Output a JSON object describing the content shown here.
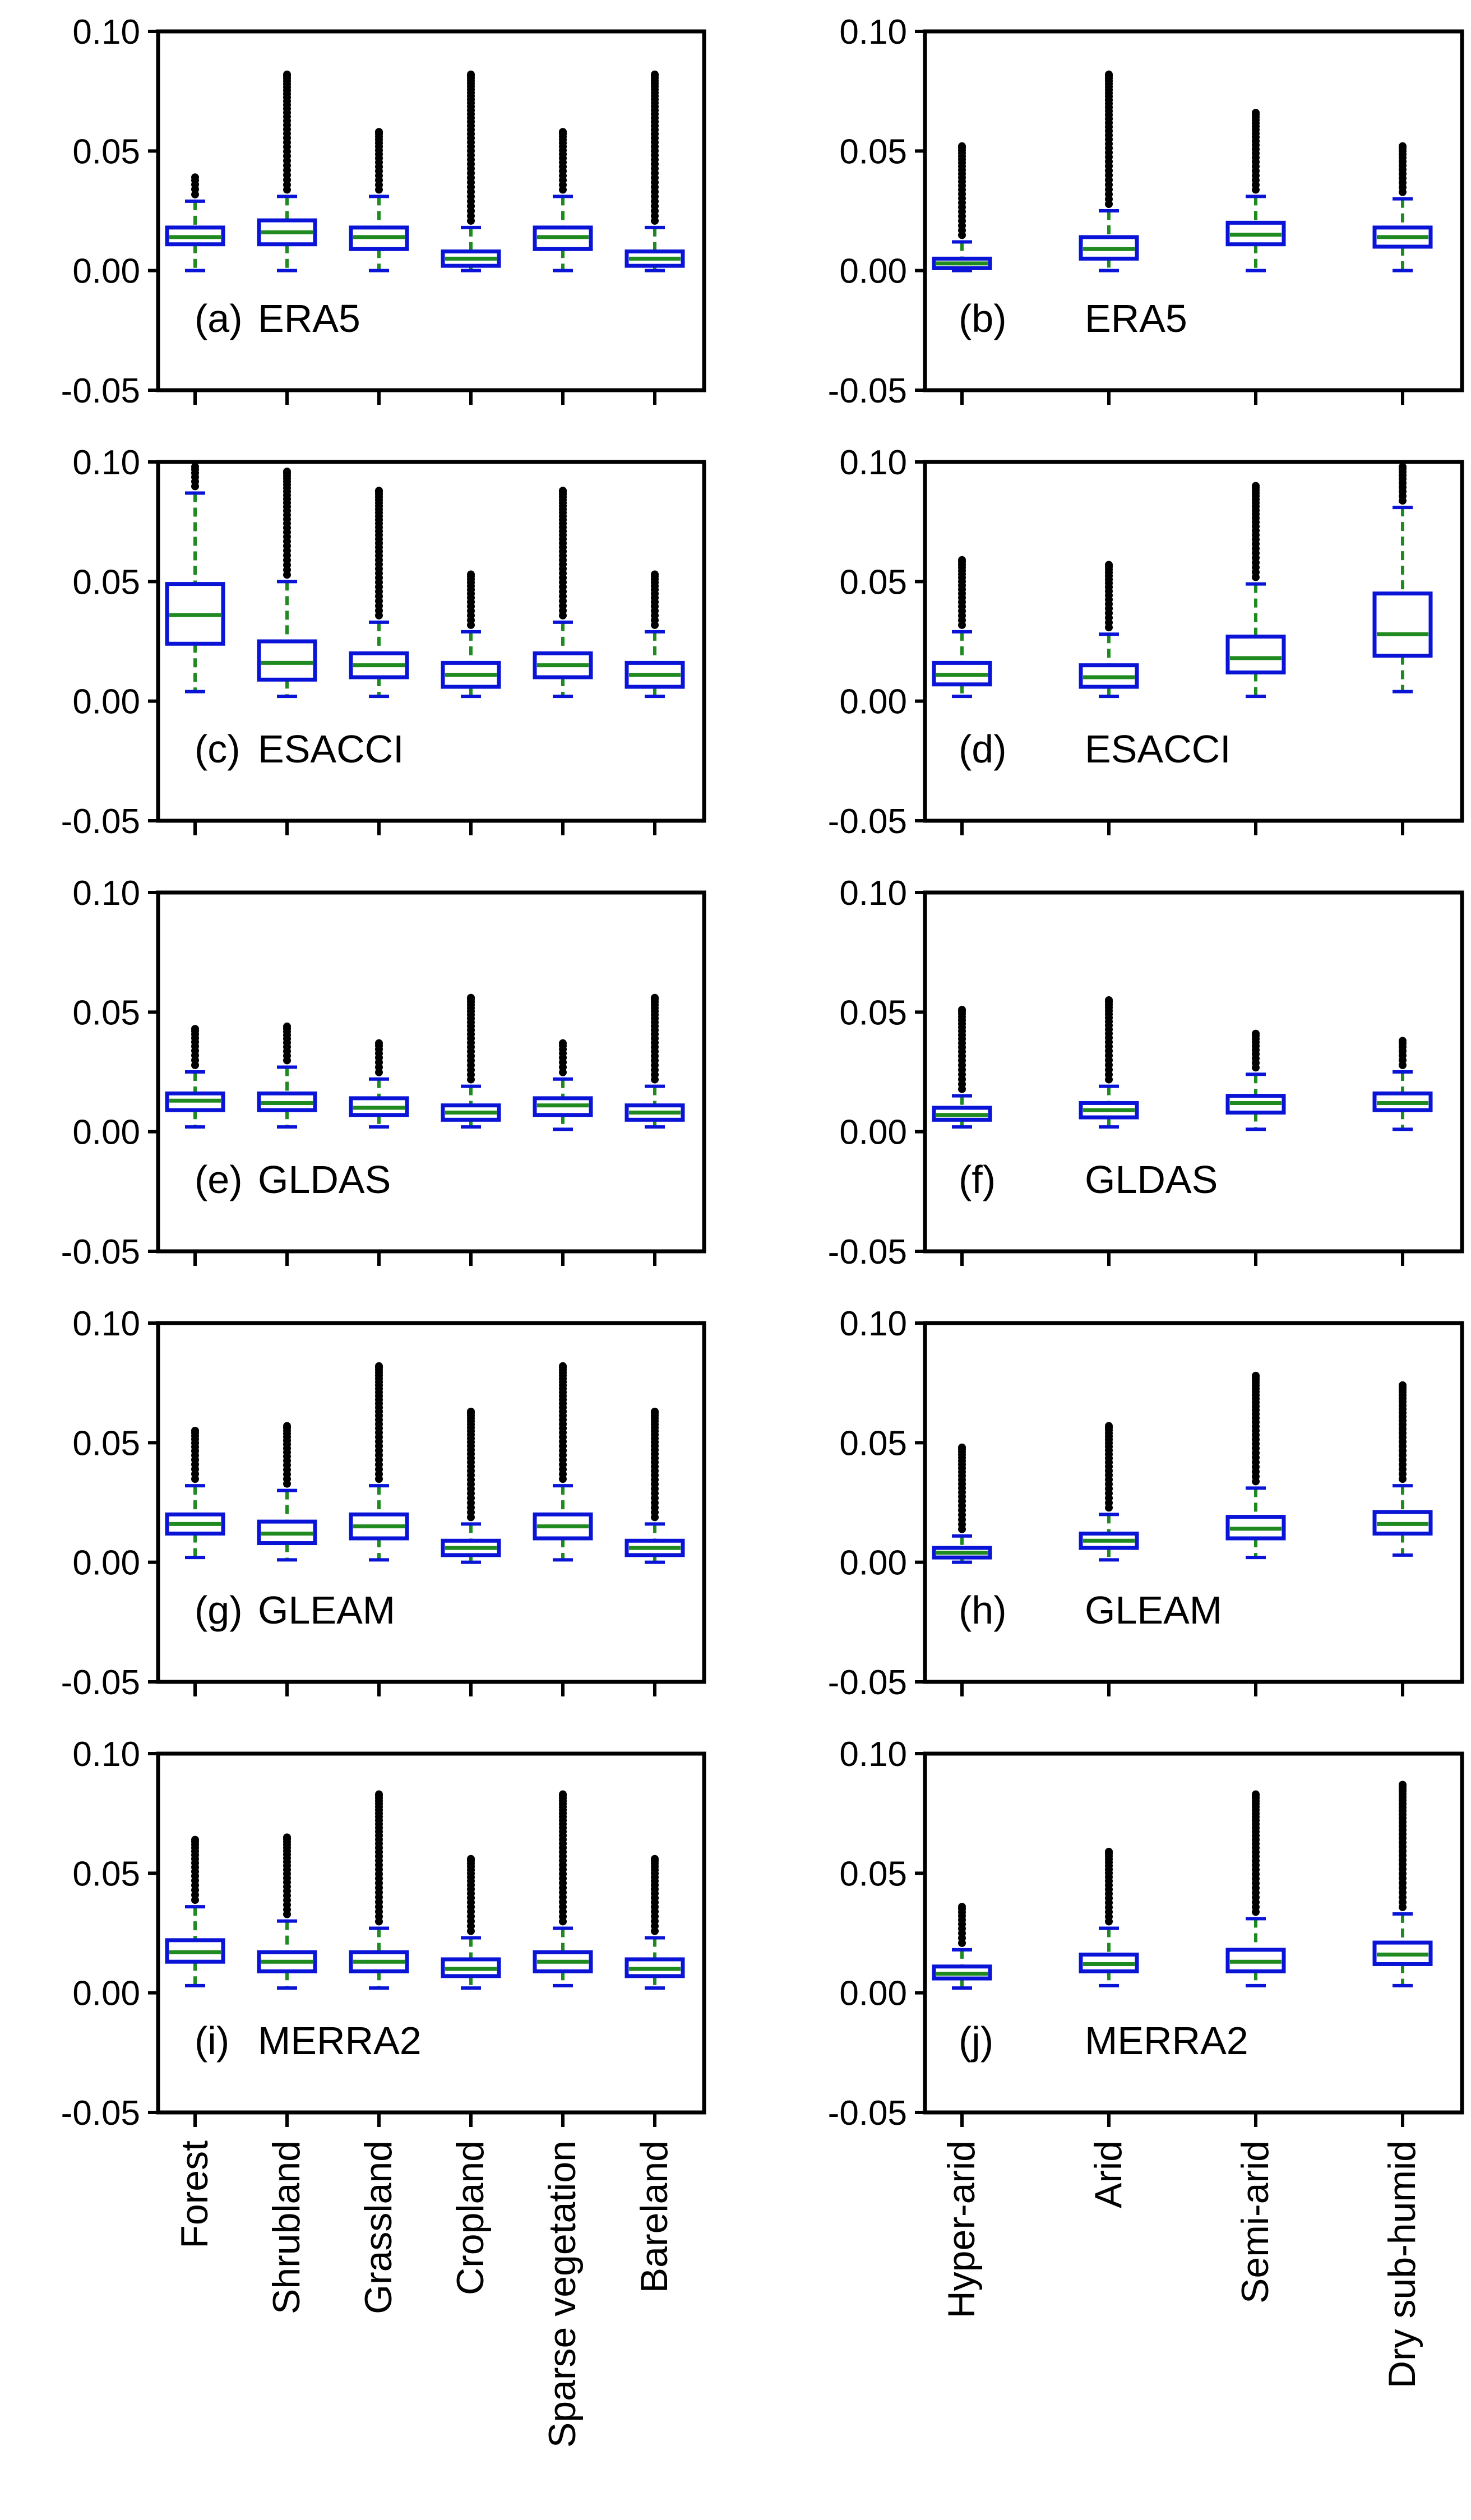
{
  "chart_data": {
    "type": "box",
    "yticks": [
      "0.10",
      "0.05",
      "0.00",
      "-0.05"
    ],
    "ylim": [
      -0.05,
      0.1
    ],
    "colors": {
      "box": "#0a14d6",
      "median": "#1f8a1f",
      "whisker": "#1f8a1f",
      "outlier": "#000000",
      "axis": "#000000"
    },
    "left_categories": [
      "Forest",
      "Shrubland",
      "Grassland",
      "Cropland",
      "Sparse vegetation",
      "Bareland"
    ],
    "right_categories": [
      "Hyper-arid",
      "Arid",
      "Semi-arid",
      "Dry sub-humid"
    ],
    "rows": [
      {
        "dataset": "ERA5",
        "left": {
          "label": "(a)",
          "name": "ERA5",
          "boxes": [
            {
              "category": "Forest",
              "min": 0.0,
              "q1": 0.011,
              "median": 0.014,
              "q3": 0.018,
              "whisker_top": 0.029,
              "outlier_top": 0.039
            },
            {
              "category": "Shrubland",
              "min": 0.0,
              "q1": 0.011,
              "median": 0.016,
              "q3": 0.021,
              "whisker_top": 0.031,
              "outlier_top": 0.082
            },
            {
              "category": "Grassland",
              "min": 0.0,
              "q1": 0.009,
              "median": 0.014,
              "q3": 0.018,
              "whisker_top": 0.031,
              "outlier_top": 0.058
            },
            {
              "category": "Cropland",
              "min": 0.0,
              "q1": 0.002,
              "median": 0.005,
              "q3": 0.008,
              "whisker_top": 0.018,
              "outlier_top": 0.082
            },
            {
              "category": "Sparse vegetation",
              "min": 0.0,
              "q1": 0.009,
              "median": 0.014,
              "q3": 0.018,
              "whisker_top": 0.031,
              "outlier_top": 0.058
            },
            {
              "category": "Bareland",
              "min": 0.0,
              "q1": 0.002,
              "median": 0.005,
              "q3": 0.008,
              "whisker_top": 0.018,
              "outlier_top": 0.082
            }
          ]
        },
        "right": {
          "label": "(b)",
          "name": "ERA5",
          "boxes": [
            {
              "category": "Hyper-arid",
              "min": 0.0,
              "q1": 0.001,
              "median": 0.003,
              "q3": 0.005,
              "whisker_top": 0.012,
              "outlier_top": 0.052
            },
            {
              "category": "Arid",
              "min": 0.0,
              "q1": 0.005,
              "median": 0.009,
              "q3": 0.014,
              "whisker_top": 0.025,
              "outlier_top": 0.082
            },
            {
              "category": "Semi-arid",
              "min": 0.0,
              "q1": 0.011,
              "median": 0.015,
              "q3": 0.02,
              "whisker_top": 0.031,
              "outlier_top": 0.066
            },
            {
              "category": "Dry sub-humid",
              "min": 0.0,
              "q1": 0.01,
              "median": 0.014,
              "q3": 0.018,
              "whisker_top": 0.03,
              "outlier_top": 0.052
            }
          ]
        }
      },
      {
        "dataset": "ESACCI",
        "left": {
          "label": "(c)",
          "name": "ESACCI",
          "boxes": [
            {
              "category": "Forest",
              "min": 0.004,
              "q1": 0.024,
              "median": 0.036,
              "q3": 0.049,
              "whisker_top": 0.087,
              "outlier_top": 0.098
            },
            {
              "category": "Shrubland",
              "min": 0.002,
              "q1": 0.009,
              "median": 0.016,
              "q3": 0.025,
              "whisker_top": 0.05,
              "outlier_top": 0.096
            },
            {
              "category": "Grassland",
              "min": 0.002,
              "q1": 0.01,
              "median": 0.015,
              "q3": 0.02,
              "whisker_top": 0.033,
              "outlier_top": 0.088
            },
            {
              "category": "Cropland",
              "min": 0.002,
              "q1": 0.006,
              "median": 0.011,
              "q3": 0.016,
              "whisker_top": 0.029,
              "outlier_top": 0.053
            },
            {
              "category": "Sparse vegetation",
              "min": 0.002,
              "q1": 0.01,
              "median": 0.015,
              "q3": 0.02,
              "whisker_top": 0.033,
              "outlier_top": 0.088
            },
            {
              "category": "Bareland",
              "min": 0.002,
              "q1": 0.006,
              "median": 0.011,
              "q3": 0.016,
              "whisker_top": 0.029,
              "outlier_top": 0.053
            }
          ]
        },
        "right": {
          "label": "(d)",
          "name": "ESACCI",
          "boxes": [
            {
              "category": "Hyper-arid",
              "min": 0.002,
              "q1": 0.007,
              "median": 0.011,
              "q3": 0.016,
              "whisker_top": 0.029,
              "outlier_top": 0.059
            },
            {
              "category": "Arid",
              "min": 0.002,
              "q1": 0.006,
              "median": 0.01,
              "q3": 0.015,
              "whisker_top": 0.028,
              "outlier_top": 0.057
            },
            {
              "category": "Semi-arid",
              "min": 0.002,
              "q1": 0.012,
              "median": 0.018,
              "q3": 0.027,
              "whisker_top": 0.049,
              "outlier_top": 0.09
            },
            {
              "category": "Dry sub-humid",
              "min": 0.004,
              "q1": 0.019,
              "median": 0.028,
              "q3": 0.045,
              "whisker_top": 0.081,
              "outlier_top": 0.098
            }
          ]
        }
      },
      {
        "dataset": "GLDAS",
        "left": {
          "label": "(e)",
          "name": "GLDAS",
          "boxes": [
            {
              "category": "Forest",
              "min": 0.002,
              "q1": 0.009,
              "median": 0.013,
              "q3": 0.016,
              "whisker_top": 0.025,
              "outlier_top": 0.043
            },
            {
              "category": "Shrubland",
              "min": 0.002,
              "q1": 0.009,
              "median": 0.012,
              "q3": 0.016,
              "whisker_top": 0.027,
              "outlier_top": 0.044
            },
            {
              "category": "Grassland",
              "min": 0.002,
              "q1": 0.007,
              "median": 0.01,
              "q3": 0.014,
              "whisker_top": 0.022,
              "outlier_top": 0.037
            },
            {
              "category": "Cropland",
              "min": 0.002,
              "q1": 0.005,
              "median": 0.008,
              "q3": 0.011,
              "whisker_top": 0.019,
              "outlier_top": 0.056
            },
            {
              "category": "Sparse vegetation",
              "min": 0.001,
              "q1": 0.007,
              "median": 0.011,
              "q3": 0.014,
              "whisker_top": 0.022,
              "outlier_top": 0.037
            },
            {
              "category": "Bareland",
              "min": 0.002,
              "q1": 0.005,
              "median": 0.008,
              "q3": 0.011,
              "whisker_top": 0.019,
              "outlier_top": 0.056
            }
          ]
        },
        "right": {
          "label": "(f)",
          "name": "GLDAS",
          "boxes": [
            {
              "category": "Hyper-arid",
              "min": 0.002,
              "q1": 0.005,
              "median": 0.007,
              "q3": 0.01,
              "whisker_top": 0.015,
              "outlier_top": 0.051
            },
            {
              "category": "Arid",
              "min": 0.002,
              "q1": 0.006,
              "median": 0.009,
              "q3": 0.012,
              "whisker_top": 0.019,
              "outlier_top": 0.055
            },
            {
              "category": "Semi-arid",
              "min": 0.001,
              "q1": 0.008,
              "median": 0.012,
              "q3": 0.015,
              "whisker_top": 0.024,
              "outlier_top": 0.041
            },
            {
              "category": "Dry sub-humid",
              "min": 0.001,
              "q1": 0.009,
              "median": 0.012,
              "q3": 0.016,
              "whisker_top": 0.025,
              "outlier_top": 0.038
            }
          ]
        }
      },
      {
        "dataset": "GLEAM",
        "left": {
          "label": "(g)",
          "name": "GLEAM",
          "boxes": [
            {
              "category": "Forest",
              "min": 0.002,
              "q1": 0.012,
              "median": 0.016,
              "q3": 0.02,
              "whisker_top": 0.032,
              "outlier_top": 0.055
            },
            {
              "category": "Shrubland",
              "min": 0.001,
              "q1": 0.008,
              "median": 0.012,
              "q3": 0.017,
              "whisker_top": 0.03,
              "outlier_top": 0.057
            },
            {
              "category": "Grassland",
              "min": 0.001,
              "q1": 0.01,
              "median": 0.015,
              "q3": 0.02,
              "whisker_top": 0.032,
              "outlier_top": 0.082
            },
            {
              "category": "Cropland",
              "min": 0.0,
              "q1": 0.003,
              "median": 0.006,
              "q3": 0.009,
              "whisker_top": 0.016,
              "outlier_top": 0.063
            },
            {
              "category": "Sparse vegetation",
              "min": 0.001,
              "q1": 0.01,
              "median": 0.015,
              "q3": 0.02,
              "whisker_top": 0.032,
              "outlier_top": 0.082
            },
            {
              "category": "Bareland",
              "min": 0.0,
              "q1": 0.003,
              "median": 0.006,
              "q3": 0.009,
              "whisker_top": 0.016,
              "outlier_top": 0.063
            }
          ]
        },
        "right": {
          "label": "(h)",
          "name": "GLEAM",
          "boxes": [
            {
              "category": "Hyper-arid",
              "min": 0.0,
              "q1": 0.002,
              "median": 0.004,
              "q3": 0.006,
              "whisker_top": 0.011,
              "outlier_top": 0.048
            },
            {
              "category": "Arid",
              "min": 0.001,
              "q1": 0.006,
              "median": 0.009,
              "q3": 0.012,
              "whisker_top": 0.02,
              "outlier_top": 0.057
            },
            {
              "category": "Semi-arid",
              "min": 0.002,
              "q1": 0.01,
              "median": 0.014,
              "q3": 0.019,
              "whisker_top": 0.031,
              "outlier_top": 0.078
            },
            {
              "category": "Dry sub-humid",
              "min": 0.003,
              "q1": 0.012,
              "median": 0.016,
              "q3": 0.021,
              "whisker_top": 0.032,
              "outlier_top": 0.074
            }
          ]
        }
      },
      {
        "dataset": "MERRA2",
        "left": {
          "label": "(i)",
          "name": "MERRA2",
          "boxes": [
            {
              "category": "Forest",
              "min": 0.003,
              "q1": 0.013,
              "median": 0.017,
              "q3": 0.022,
              "whisker_top": 0.036,
              "outlier_top": 0.064
            },
            {
              "category": "Shrubland",
              "min": 0.002,
              "q1": 0.009,
              "median": 0.013,
              "q3": 0.017,
              "whisker_top": 0.03,
              "outlier_top": 0.065
            },
            {
              "category": "Grassland",
              "min": 0.002,
              "q1": 0.009,
              "median": 0.013,
              "q3": 0.017,
              "whisker_top": 0.027,
              "outlier_top": 0.083
            },
            {
              "category": "Cropland",
              "min": 0.002,
              "q1": 0.007,
              "median": 0.01,
              "q3": 0.014,
              "whisker_top": 0.023,
              "outlier_top": 0.056
            },
            {
              "category": "Sparse vegetation",
              "min": 0.003,
              "q1": 0.009,
              "median": 0.013,
              "q3": 0.017,
              "whisker_top": 0.027,
              "outlier_top": 0.083
            },
            {
              "category": "Bareland",
              "min": 0.002,
              "q1": 0.007,
              "median": 0.01,
              "q3": 0.014,
              "whisker_top": 0.023,
              "outlier_top": 0.056
            }
          ]
        },
        "right": {
          "label": "(j)",
          "name": "MERRA2",
          "boxes": [
            {
              "category": "Hyper-arid",
              "min": 0.002,
              "q1": 0.006,
              "median": 0.008,
              "q3": 0.011,
              "whisker_top": 0.018,
              "outlier_top": 0.036
            },
            {
              "category": "Arid",
              "min": 0.003,
              "q1": 0.009,
              "median": 0.012,
              "q3": 0.016,
              "whisker_top": 0.027,
              "outlier_top": 0.059
            },
            {
              "category": "Semi-arid",
              "min": 0.003,
              "q1": 0.009,
              "median": 0.013,
              "q3": 0.018,
              "whisker_top": 0.031,
              "outlier_top": 0.083
            },
            {
              "category": "Dry sub-humid",
              "min": 0.003,
              "q1": 0.012,
              "median": 0.016,
              "q3": 0.021,
              "whisker_top": 0.033,
              "outlier_top": 0.087
            }
          ]
        }
      }
    ]
  }
}
